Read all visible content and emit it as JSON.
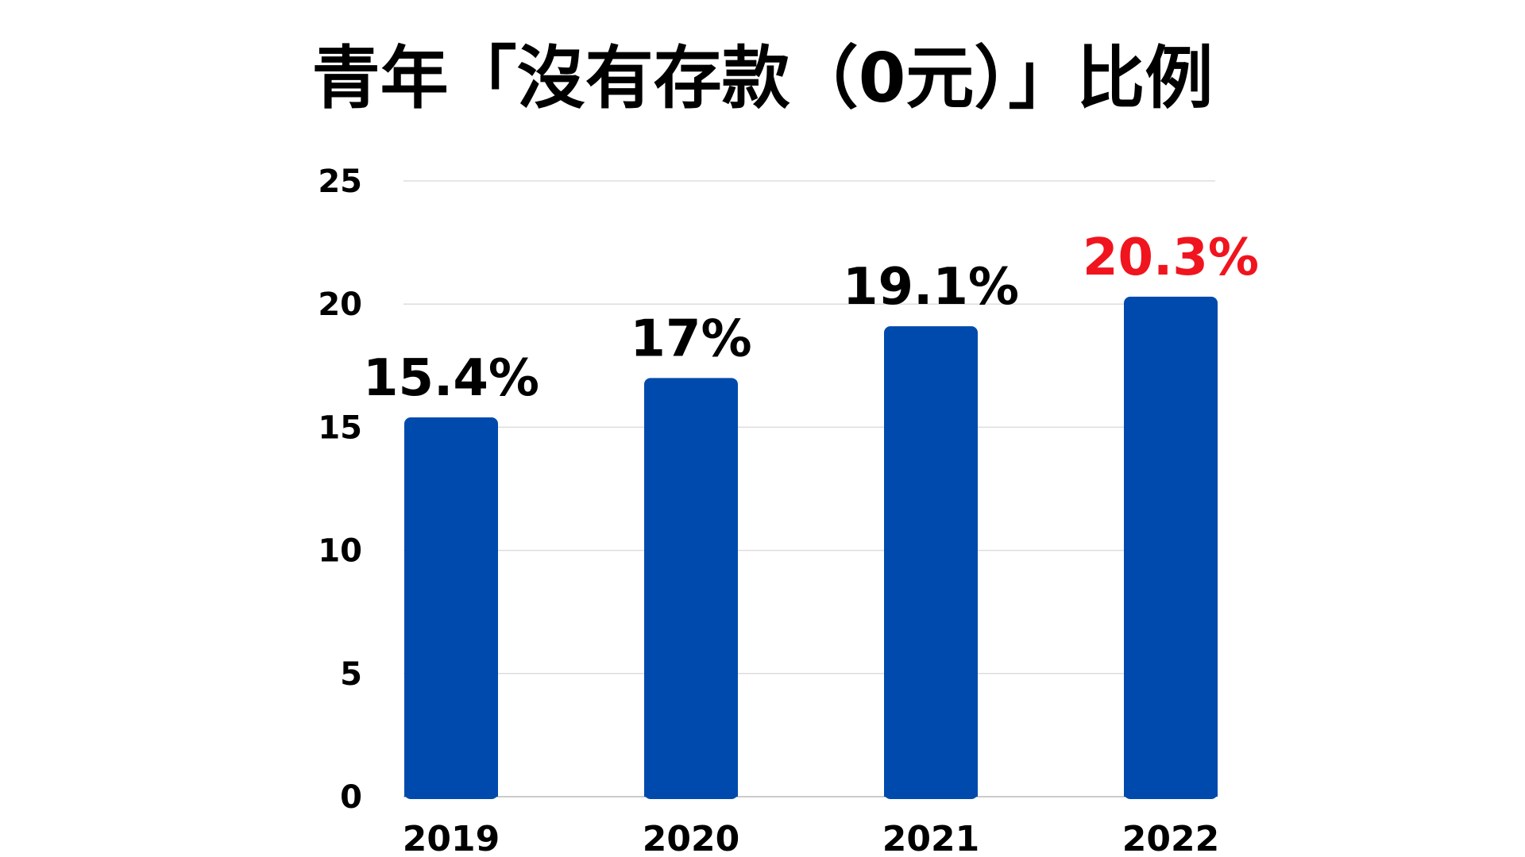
{
  "chart_data": {
    "type": "bar",
    "title": "青年「沒有存款（0元）」比例",
    "categories": [
      "2019",
      "2020",
      "2021",
      "2022"
    ],
    "values": [
      15.4,
      17,
      19.1,
      20.3
    ],
    "data_labels": [
      "15.4%",
      "17%",
      "19.1%",
      "20.3%"
    ],
    "highlight_index": 3,
    "ylim": [
      0,
      25
    ],
    "yticks": [
      0,
      5,
      10,
      15,
      20,
      25
    ],
    "ytick_labels": [
      "0",
      "5",
      "10",
      "15",
      "20",
      "25"
    ],
    "xlabel": "",
    "ylabel": "",
    "grid": true,
    "legend": "none",
    "colors": {
      "bar": "#004AAD",
      "label": "#000000",
      "highlight_label": "#F0141E",
      "grid": "#DDDDDD",
      "axis": "#CCCCCC"
    }
  }
}
